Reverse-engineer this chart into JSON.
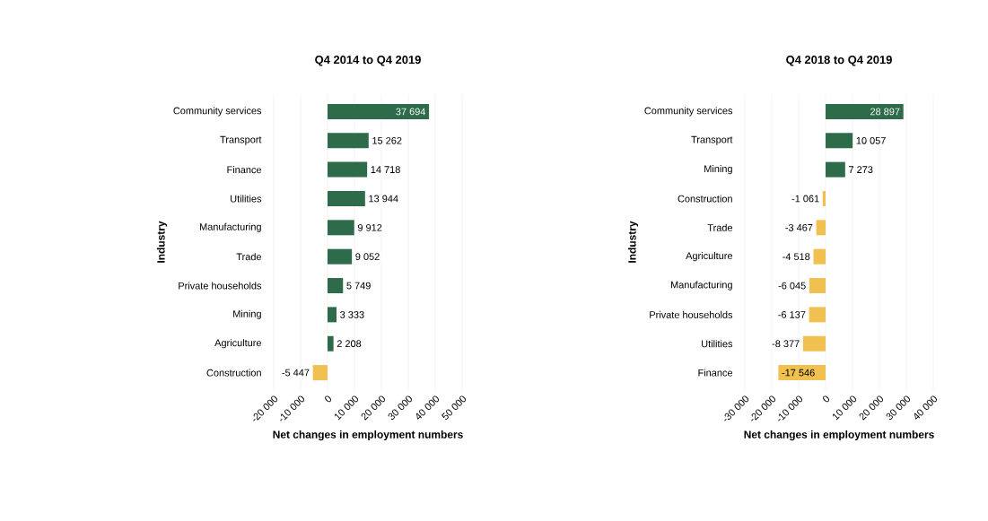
{
  "chart_data": [
    {
      "type": "bar",
      "orientation": "horizontal",
      "title": "Q4 2014 to Q4 2019",
      "xlabel": "Net changes in employment numbers",
      "ylabel": "Industry",
      "categories": [
        "Community services",
        "Transport",
        "Finance",
        "Utilities",
        "Manufacturing",
        "Trade",
        "Private households",
        "Mining",
        "Agriculture",
        "Construction"
      ],
      "values": [
        37694,
        15262,
        14718,
        13944,
        9912,
        9052,
        5749,
        3333,
        2208,
        -5447
      ],
      "value_labels": [
        "37 694",
        "15 262",
        "14 718",
        "13 944",
        "9 912",
        "9 052",
        "5 749",
        "3 333",
        "2 208",
        "-5 447"
      ],
      "colors": [
        "#2e6b4a",
        "#2e6b4a",
        "#2e6b4a",
        "#2e6b4a",
        "#2e6b4a",
        "#2e6b4a",
        "#2e6b4a",
        "#2e6b4a",
        "#2e6b4a",
        "#f0c050"
      ],
      "xlim": [
        -20000,
        50000
      ],
      "xticks": [
        {
          "value": -20000,
          "label": "-20 000"
        },
        {
          "value": -10000,
          "label": "-10 000"
        },
        0,
        {
          "value": 10000,
          "label": "10 000"
        },
        {
          "value": 20000,
          "label": "20 000"
        },
        {
          "value": 30000,
          "label": "30 000"
        },
        {
          "value": 40000,
          "label": "40 000"
        },
        {
          "value": 50000,
          "label": "50 000"
        }
      ],
      "grid": "x"
    },
    {
      "type": "bar",
      "orientation": "horizontal",
      "title": "Q4 2018 to Q4 2019",
      "xlabel": "Net changes in employment numbers",
      "ylabel": "Industry",
      "categories": [
        "Community services",
        "Transport",
        "Mining",
        "Construction",
        "Trade",
        "Agriculture",
        "Manufacturing",
        "Private households",
        "Utilities",
        "Finance"
      ],
      "values": [
        28897,
        10057,
        7273,
        -1061,
        -3467,
        -4518,
        -6045,
        -6137,
        -8377,
        -17546
      ],
      "value_labels": [
        "28 897",
        "10 057",
        "7 273",
        "-1 061",
        "-3 467",
        "-4 518",
        "-6 045",
        "-6 137",
        "-8 377",
        "-17 546"
      ],
      "colors": [
        "#2e6b4a",
        "#2e6b4a",
        "#2e6b4a",
        "#f0c050",
        "#f0c050",
        "#f0c050",
        "#f0c050",
        "#f0c050",
        "#f0c050",
        "#f0c050"
      ],
      "xlim": [
        -30000,
        40000
      ],
      "xticks": [
        {
          "value": -30000,
          "label": "-30 000"
        },
        {
          "value": -20000,
          "label": "-20 000"
        },
        {
          "value": -10000,
          "label": "-10 000"
        },
        0,
        {
          "value": 10000,
          "label": "10 000"
        },
        {
          "value": 20000,
          "label": "20 000"
        },
        {
          "value": 30000,
          "label": "30 000"
        },
        {
          "value": 40000,
          "label": "40 000"
        }
      ],
      "grid": "x"
    }
  ]
}
